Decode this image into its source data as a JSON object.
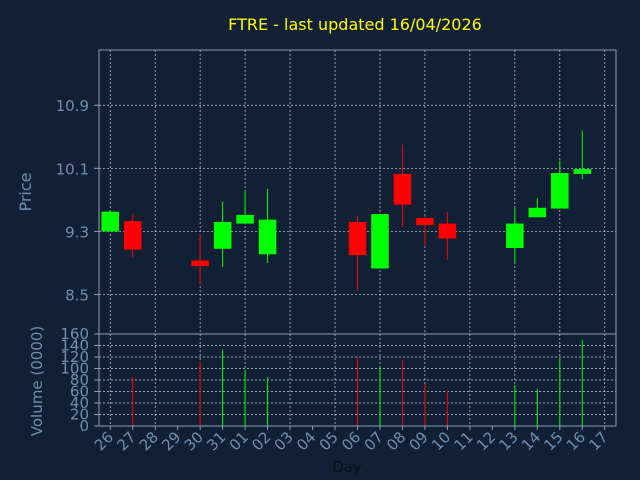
{
  "colors": {
    "background": "#112035",
    "title": "#ffff00",
    "axis_text": "#6f8fb0",
    "axis_line": "#8aa0b8",
    "grid": "#c8d2dc",
    "up": "#00ff00",
    "down": "#ff0000"
  },
  "chart_data": {
    "type": "candlestick",
    "title": "FTRE - last updated 16/04/2026",
    "xlabel": "Day",
    "price_panel": {
      "ylabel": "Price",
      "ylim": [
        8.0,
        11.6
      ],
      "yticks": [
        "8.5",
        "9.3",
        "10.1",
        "10.9"
      ],
      "grid": true
    },
    "volume_panel": {
      "ylabel": "Volume (0000)",
      "ylim": [
        0,
        160
      ],
      "yticks": [
        "0",
        "20",
        "40",
        "60",
        "80",
        "100",
        "120",
        "140",
        "160"
      ],
      "grid": true
    },
    "x_ticks": [
      "26",
      "27",
      "28",
      "29",
      "30",
      "31",
      "01",
      "02",
      "03",
      "04",
      "05",
      "06",
      "07",
      "08",
      "09",
      "10",
      "11",
      "12",
      "13",
      "14",
      "15",
      "16",
      "17"
    ],
    "candles": [
      {
        "day": "26",
        "open": 9.3,
        "high": 9.57,
        "low": 9.3,
        "close": 9.55,
        "volume": null
      },
      {
        "day": "27",
        "open": 9.43,
        "high": 9.52,
        "low": 8.97,
        "close": 9.07,
        "volume": 85
      },
      {
        "day": "30",
        "open": 8.93,
        "high": 9.27,
        "low": 8.63,
        "close": 8.86,
        "volume": 113
      },
      {
        "day": "31",
        "open": 9.08,
        "high": 9.68,
        "low": 8.85,
        "close": 9.42,
        "volume": 133
      },
      {
        "day": "01",
        "open": 9.4,
        "high": 9.82,
        "low": 9.4,
        "close": 9.51,
        "volume": 97
      },
      {
        "day": "02",
        "open": 9.01,
        "high": 9.84,
        "low": 8.9,
        "close": 9.45,
        "volume": 85
      },
      {
        "day": "06",
        "open": 9.42,
        "high": 9.5,
        "low": 8.56,
        "close": 9.0,
        "volume": 120
      },
      {
        "day": "07",
        "open": 8.83,
        "high": 9.53,
        "low": 8.83,
        "close": 9.52,
        "volume": 103
      },
      {
        "day": "08",
        "open": 10.03,
        "high": 10.4,
        "low": 9.36,
        "close": 9.64,
        "volume": 116
      },
      {
        "day": "09",
        "open": 9.47,
        "high": 9.5,
        "low": 9.12,
        "close": 9.38,
        "volume": 73
      },
      {
        "day": "10",
        "open": 9.4,
        "high": 9.55,
        "low": 8.94,
        "close": 9.21,
        "volume": 62
      },
      {
        "day": "13",
        "open": 9.09,
        "high": 9.6,
        "low": 8.9,
        "close": 9.4,
        "volume": 71
      },
      {
        "day": "14",
        "open": 9.48,
        "high": 9.72,
        "low": 9.48,
        "close": 9.6,
        "volume": 65
      },
      {
        "day": "15",
        "open": 9.59,
        "high": 10.2,
        "low": 9.59,
        "close": 10.04,
        "volume": 118
      },
      {
        "day": "16",
        "open": 10.03,
        "high": 10.58,
        "low": 9.96,
        "close": 10.09,
        "volume": 150
      }
    ]
  }
}
